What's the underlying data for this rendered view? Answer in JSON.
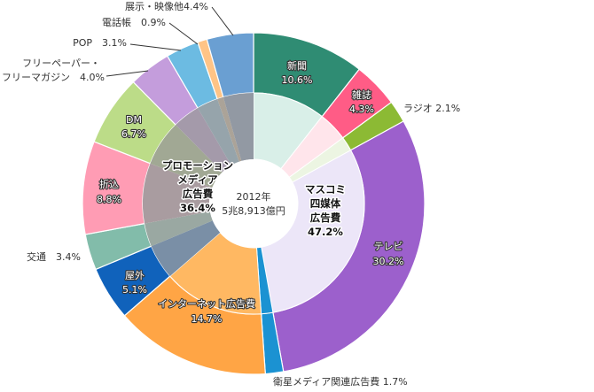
{
  "chart_data": {
    "type": "pie",
    "variant": "donut-two-level",
    "center_label": {
      "year": "2012年",
      "total": "5兆8,913億円"
    },
    "unit": "%",
    "slices": [
      {
        "name": "新聞",
        "value": 10.6,
        "label": "10.6%",
        "group": "mass",
        "color": "#2f8c73",
        "tint": "#d9efe8"
      },
      {
        "name": "雑誌",
        "value": 4.3,
        "label": "4.3%",
        "group": "mass",
        "color": "#ff5c86",
        "tint": "#ffe5eb"
      },
      {
        "name": "ラジオ",
        "value": 2.1,
        "label": "2.1%",
        "group": "mass",
        "color": "#8cba34",
        "tint": "#ecf5e2"
      },
      {
        "name": "テレビ",
        "value": 30.2,
        "label": "30.2%",
        "group": "mass",
        "color": "#9c60cc",
        "tint": "#ece6f8"
      },
      {
        "name": "衛星メディア関連広告費",
        "value": 1.7,
        "label": "1.7%",
        "group": "other",
        "color": "#1b92d2",
        "tint": "#1b92d2"
      },
      {
        "name": "インターネット広告費",
        "value": 14.7,
        "label": "14.7%",
        "group": "other",
        "color": "#ffa545",
        "tint": "#ffb862"
      },
      {
        "name": "屋外",
        "value": 5.1,
        "label": "5.1%",
        "group": "promo",
        "color": "#1062bb",
        "tint": "#7a8fa6"
      },
      {
        "name": "交通",
        "value": 3.4,
        "label": "3.4%",
        "group": "promo",
        "color": "#82bcaa",
        "tint": "#9aa8a2"
      },
      {
        "name": "折込",
        "value": 8.8,
        "label": "8.8%",
        "group": "promo",
        "color": "#ff9cb4",
        "tint": "#a99ca0"
      },
      {
        "name": "DM",
        "value": 6.7,
        "label": "6.7%",
        "group": "promo",
        "color": "#bcdc88",
        "tint": "#a1a894"
      },
      {
        "name": "フリーペーパー・フリーマガジン",
        "value": 4.0,
        "label": "4.0%",
        "group": "promo",
        "color": "#c49ddc",
        "tint": "#a49aaa"
      },
      {
        "name": "POP",
        "value": 3.1,
        "label": "3.1%",
        "group": "promo",
        "color": "#6cbbe2",
        "tint": "#96a4ab"
      },
      {
        "name": "電話帳",
        "value": 0.9,
        "label": "0.9%",
        "group": "promo",
        "color": "#ffc486",
        "tint": "#aba398"
      },
      {
        "name": "展示・映像他",
        "value": 4.4,
        "label": "4.4%",
        "group": "promo",
        "color": "#6a9fd2",
        "tint": "#9299a3"
      }
    ],
    "groups": [
      {
        "name": "マスコミ四媒体広告費",
        "lines": [
          "マスコミ",
          "四媒体",
          "広告費"
        ],
        "value": 47.2,
        "label": "47.2%"
      },
      {
        "name": "プロモーションメディア広告費",
        "lines": [
          "プロモーション",
          "メディア",
          "広告費"
        ],
        "value": 36.4,
        "label": "36.4%"
      }
    ],
    "outside_labels": {
      "radio": "ラジオ 2.1%",
      "satellite": "衛星メディア関連広告費 1.7%",
      "traffic": "交通　3.4%",
      "freepaper_1": "フリーペーパー・",
      "freepaper_2": "フリーマガジン　4.0%",
      "pop": "POP　3.1%",
      "phonebook": "電話帳　0.9%",
      "exhibit": "展示・映像他4.4%"
    }
  }
}
